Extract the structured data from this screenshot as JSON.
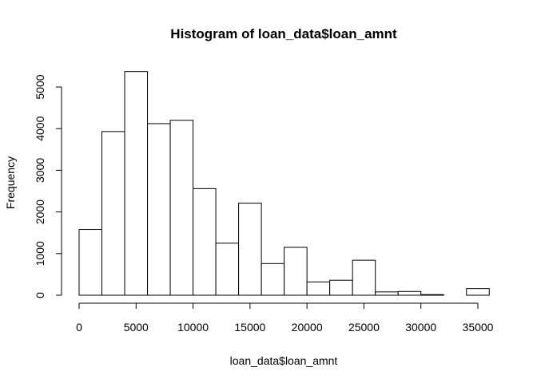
{
  "chart_data": {
    "type": "bar",
    "title": "Histogram of loan_data$loan_amnt",
    "xlabel": "loan_data$loan_amnt",
    "ylabel": "Frequency",
    "xlim": [
      0,
      36000
    ],
    "ylim": [
      0,
      5000
    ],
    "bin_width": 2000,
    "bins": [
      {
        "x0": 0,
        "x1": 2000,
        "count": 1580
      },
      {
        "x0": 2000,
        "x1": 4000,
        "count": 3930
      },
      {
        "x0": 4000,
        "x1": 6000,
        "count": 5370
      },
      {
        "x0": 6000,
        "x1": 8000,
        "count": 4120
      },
      {
        "x0": 8000,
        "x1": 10000,
        "count": 4200
      },
      {
        "x0": 10000,
        "x1": 12000,
        "count": 2560
      },
      {
        "x0": 12000,
        "x1": 14000,
        "count": 1250
      },
      {
        "x0": 14000,
        "x1": 16000,
        "count": 2210
      },
      {
        "x0": 16000,
        "x1": 18000,
        "count": 760
      },
      {
        "x0": 18000,
        "x1": 20000,
        "count": 1150
      },
      {
        "x0": 20000,
        "x1": 22000,
        "count": 320
      },
      {
        "x0": 22000,
        "x1": 24000,
        "count": 360
      },
      {
        "x0": 24000,
        "x1": 26000,
        "count": 840
      },
      {
        "x0": 26000,
        "x1": 28000,
        "count": 80
      },
      {
        "x0": 28000,
        "x1": 30000,
        "count": 90
      },
      {
        "x0": 30000,
        "x1": 32000,
        "count": 15
      },
      {
        "x0": 32000,
        "x1": 34000,
        "count": 0
      },
      {
        "x0": 34000,
        "x1": 36000,
        "count": 160
      }
    ],
    "x_ticks": [
      0,
      5000,
      10000,
      15000,
      20000,
      25000,
      30000,
      35000
    ],
    "y_ticks": [
      0,
      1000,
      2000,
      3000,
      4000,
      5000
    ],
    "grid": false,
    "bar_fill": "#ffffff",
    "bar_stroke": "#000000"
  }
}
